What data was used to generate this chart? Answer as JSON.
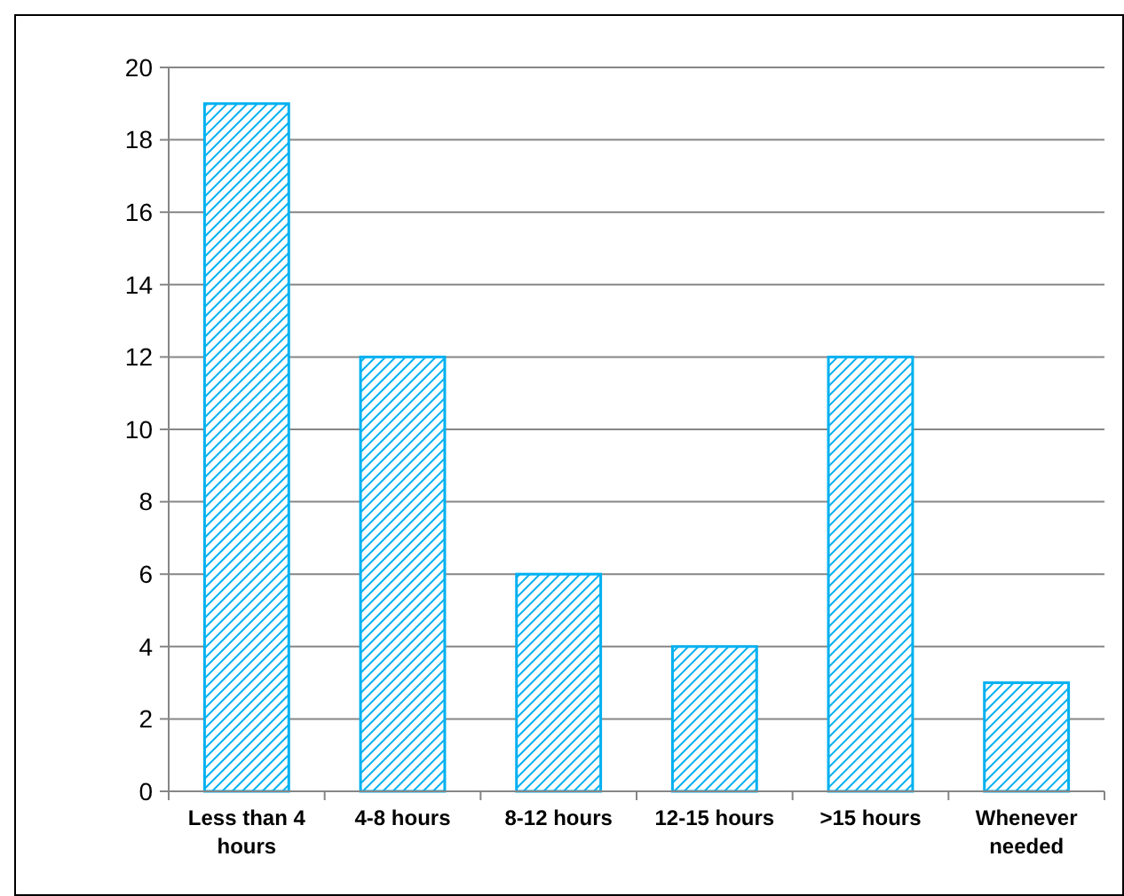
{
  "chart_data": {
    "type": "bar",
    "categories": [
      "Less than 4 hours",
      "4-8 hours",
      "8-12 hours",
      "12-15 hours",
      ">15 hours",
      "Whenever needed"
    ],
    "values": [
      19,
      12,
      6,
      4,
      12,
      3
    ],
    "color": "#00b0f0",
    "ylim": [
      0,
      20
    ],
    "yticks": [
      0,
      2,
      4,
      6,
      8,
      10,
      12,
      14,
      16,
      18,
      20
    ],
    "grid": "y"
  }
}
